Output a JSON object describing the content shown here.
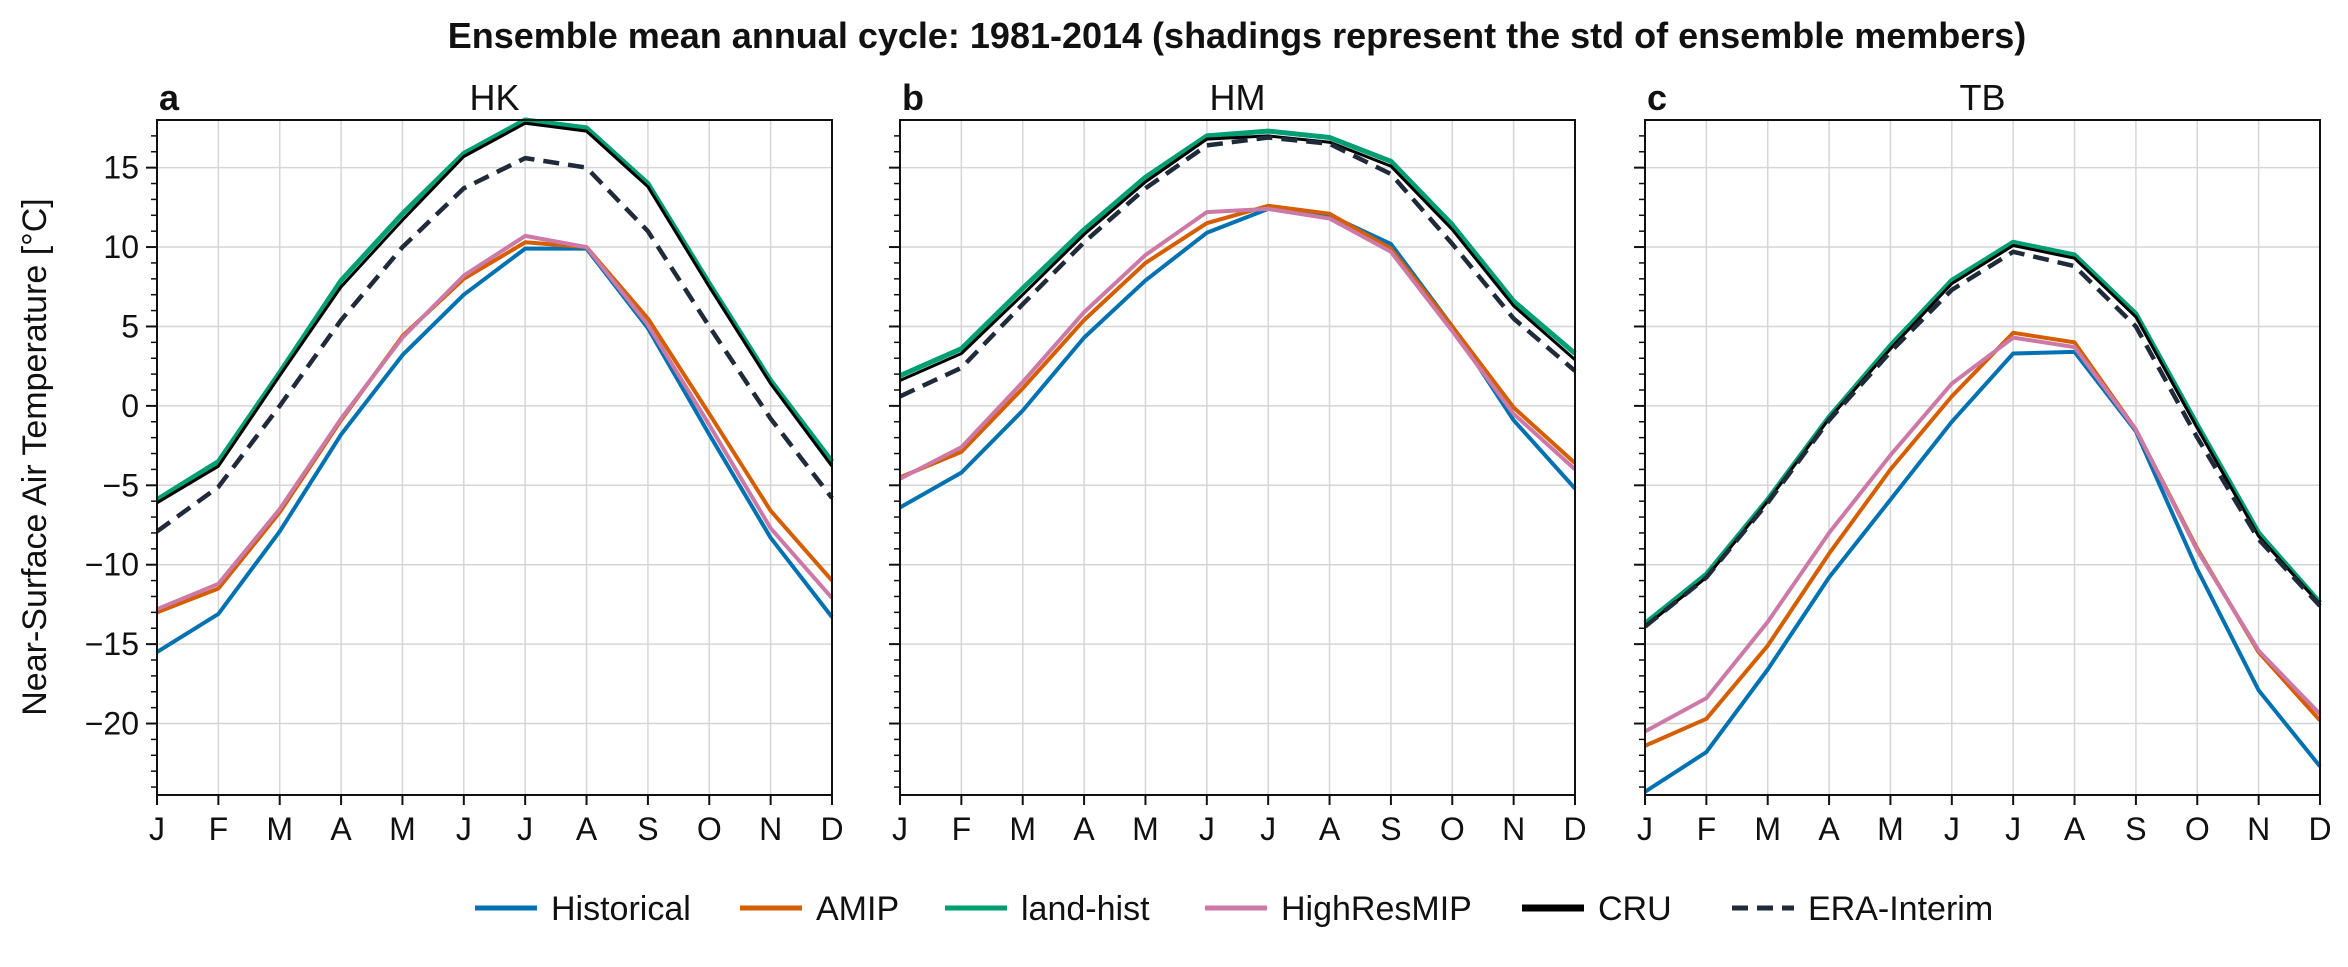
{
  "figure": {
    "suptitle": "Ensemble mean annual cycle: 1981-2014 (shadings represent the std of ensemble members)",
    "ylabel": "Near-Surface Air Temperature [°C]"
  },
  "legend": [
    {
      "name": "Historical",
      "color": "#0072B2",
      "dashed": false
    },
    {
      "name": "AMIP",
      "color": "#D55E00",
      "dashed": false
    },
    {
      "name": "land-hist",
      "color": "#009E73",
      "dashed": false
    },
    {
      "name": "HighResMIP",
      "color": "#CC79A7",
      "dashed": false
    },
    {
      "name": "CRU",
      "color": "#000000",
      "dashed": false
    },
    {
      "name": "ERA-Interim",
      "color": "#1f2a3a",
      "dashed": true
    }
  ],
  "chart_data": [
    {
      "type": "line",
      "panel_label": "a",
      "title": "HK",
      "categories": [
        "J",
        "F",
        "M",
        "A",
        "M",
        "J",
        "J",
        "A",
        "S",
        "O",
        "N",
        "D"
      ],
      "ylim": [
        -24.5,
        18
      ],
      "yticks": [
        15,
        10,
        5,
        0,
        -5,
        -10,
        -15,
        -20
      ],
      "ytick_labels": [
        "15",
        "10",
        "5",
        "0",
        "−5",
        "−10",
        "−15",
        "−20"
      ],
      "grid": true,
      "series": [
        {
          "name": "Historical",
          "values": [
            -15.5,
            -13.1,
            -7.9,
            -1.8,
            3.2,
            7.0,
            9.9,
            9.9,
            4.9,
            -1.8,
            -8.3,
            -13.3
          ]
        },
        {
          "name": "AMIP",
          "values": [
            -13.0,
            -11.5,
            -6.7,
            -0.9,
            4.4,
            8.0,
            10.3,
            10.0,
            5.5,
            -0.5,
            -6.6,
            -11.0
          ]
        },
        {
          "name": "HighResMIP",
          "values": [
            -12.8,
            -11.2,
            -6.5,
            -0.8,
            4.3,
            8.2,
            10.7,
            10.0,
            5.1,
            -1.2,
            -7.7,
            -12.1
          ]
        },
        {
          "name": "land-hist",
          "values": [
            -5.9,
            -3.5,
            2.1,
            7.9,
            12.1,
            15.9,
            18.0,
            17.5,
            14.0,
            7.7,
            1.6,
            -3.5
          ]
        },
        {
          "name": "CRU",
          "values": [
            -6.1,
            -3.8,
            1.9,
            7.5,
            11.7,
            15.7,
            17.8,
            17.3,
            13.8,
            7.5,
            1.4,
            -3.8
          ]
        },
        {
          "name": "ERA-Interim",
          "values": [
            -7.9,
            -5.1,
            0.0,
            5.4,
            10.0,
            13.7,
            15.6,
            15.0,
            11.0,
            5.0,
            -0.8,
            -5.8
          ]
        }
      ]
    },
    {
      "type": "line",
      "panel_label": "b",
      "title": "HM",
      "categories": [
        "J",
        "F",
        "M",
        "A",
        "M",
        "J",
        "J",
        "A",
        "S",
        "O",
        "N",
        "D"
      ],
      "ylim": [
        -24.5,
        18
      ],
      "yticks": [
        15,
        10,
        5,
        0,
        -5,
        -10,
        -15,
        -20
      ],
      "grid": true,
      "series": [
        {
          "name": "Historical",
          "values": [
            -6.4,
            -4.2,
            -0.3,
            4.3,
            7.9,
            10.9,
            12.4,
            12.0,
            10.2,
            5.0,
            -0.9,
            -5.2
          ]
        },
        {
          "name": "AMIP",
          "values": [
            -4.5,
            -2.9,
            1.1,
            5.4,
            9.0,
            11.5,
            12.6,
            12.1,
            9.9,
            5.0,
            -0.1,
            -3.6
          ]
        },
        {
          "name": "HighResMIP",
          "values": [
            -4.6,
            -2.6,
            1.5,
            5.9,
            9.5,
            12.2,
            12.4,
            11.8,
            9.7,
            4.7,
            -0.5,
            -4.0
          ]
        },
        {
          "name": "land-hist",
          "values": [
            1.9,
            3.6,
            7.4,
            11.1,
            14.4,
            17.0,
            17.3,
            16.9,
            15.4,
            11.4,
            6.6,
            3.3
          ]
        },
        {
          "name": "CRU",
          "values": [
            1.6,
            3.3,
            7.0,
            10.8,
            14.1,
            16.8,
            17.0,
            16.6,
            15.1,
            11.1,
            6.3,
            2.9
          ]
        },
        {
          "name": "ERA-Interim",
          "values": [
            0.6,
            2.4,
            6.4,
            10.3,
            13.7,
            16.4,
            16.9,
            16.5,
            14.6,
            10.2,
            5.5,
            2.2
          ]
        }
      ]
    },
    {
      "type": "line",
      "panel_label": "c",
      "title": "TB",
      "categories": [
        "J",
        "F",
        "M",
        "A",
        "M",
        "J",
        "J",
        "A",
        "S",
        "O",
        "N",
        "D"
      ],
      "ylim": [
        -24.5,
        18
      ],
      "yticks": [
        15,
        10,
        5,
        0,
        -5,
        -10,
        -15,
        -20
      ],
      "grid": true,
      "series": [
        {
          "name": "Historical",
          "values": [
            -24.3,
            -21.8,
            -16.6,
            -10.8,
            -5.9,
            -1.0,
            3.3,
            3.4,
            -1.6,
            -10.3,
            -17.9,
            -22.7
          ]
        },
        {
          "name": "AMIP",
          "values": [
            -21.4,
            -19.7,
            -15.1,
            -9.3,
            -4.0,
            0.6,
            4.6,
            4.0,
            -1.5,
            -9.0,
            -15.5,
            -19.8
          ]
        },
        {
          "name": "HighResMIP",
          "values": [
            -20.5,
            -18.4,
            -13.6,
            -8.0,
            -3.1,
            1.4,
            4.3,
            3.7,
            -1.5,
            -9.1,
            -15.4,
            -19.4
          ]
        },
        {
          "name": "land-hist",
          "values": [
            -13.7,
            -10.6,
            -5.9,
            -0.7,
            3.8,
            7.9,
            10.3,
            9.5,
            5.8,
            -1.2,
            -8.0,
            -12.4
          ]
        },
        {
          "name": "CRU",
          "values": [
            -13.9,
            -10.8,
            -6.0,
            -0.8,
            3.6,
            7.7,
            10.1,
            9.3,
            5.6,
            -1.4,
            -8.2,
            -12.5
          ]
        },
        {
          "name": "ERA-Interim",
          "values": [
            -13.9,
            -10.8,
            -6.1,
            -0.9,
            3.4,
            7.3,
            9.7,
            8.8,
            5.0,
            -2.0,
            -8.4,
            -12.6
          ]
        }
      ]
    }
  ]
}
